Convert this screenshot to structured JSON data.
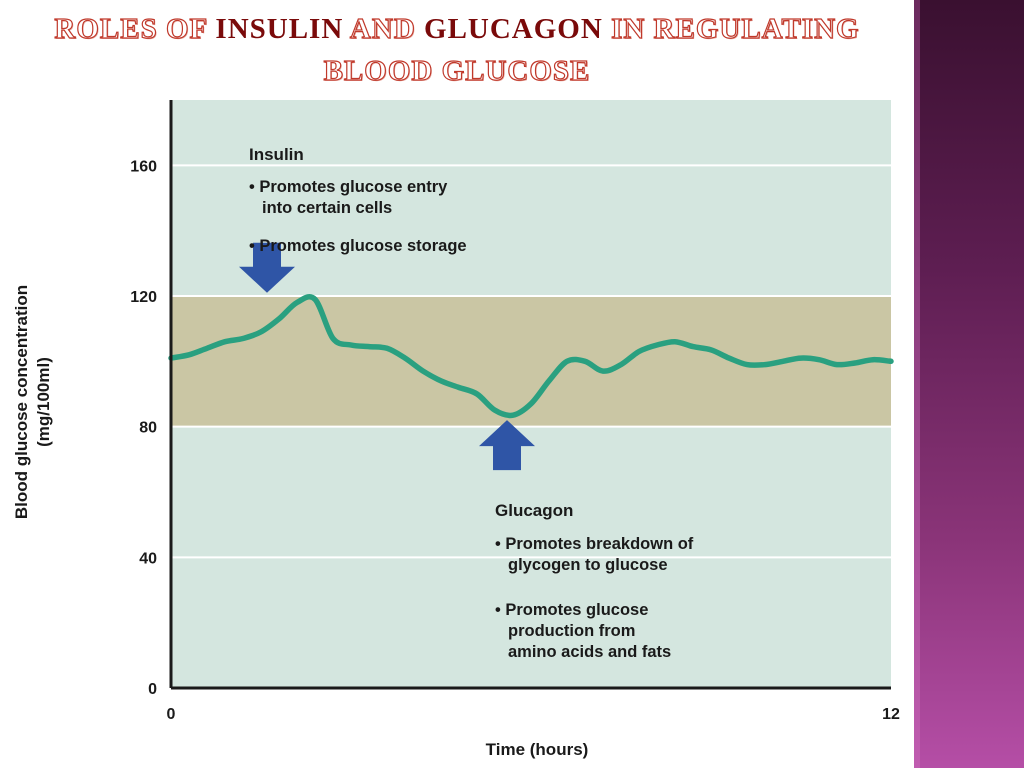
{
  "slide": {
    "title_parts": [
      "Roles of ",
      "Insulin",
      " and ",
      "Glucagon",
      " in regulating"
    ],
    "title_line2": "blood glucose"
  },
  "colors": {
    "plot_background": "#d4e6df",
    "normal_band": "#cac6a4",
    "curve": "#2aa080",
    "arrow": "#2f55a6",
    "gridline": "#ffffff",
    "title_outline": "#c0392b",
    "title_strong": "#7a0a0a"
  },
  "chart_data": {
    "type": "line",
    "title": "",
    "xlabel": "Time (hours)",
    "ylabel_lines": [
      "Blood glucose concentration",
      "(mg/100ml)"
    ],
    "xlim": [
      0,
      12
    ],
    "ylim": [
      0,
      180
    ],
    "x_ticks": [
      0,
      12
    ],
    "y_ticks": [
      0,
      40,
      80,
      120,
      160
    ],
    "grid": true,
    "normal_range": [
      80,
      120
    ],
    "series": [
      {
        "name": "",
        "x": [
          0,
          0.3,
          0.6,
          0.9,
          1.2,
          1.5,
          1.8,
          2.1,
          2.4,
          2.7,
          3.0,
          3.3,
          3.6,
          3.9,
          4.2,
          4.5,
          4.8,
          5.1,
          5.4,
          5.7,
          6.0,
          6.3,
          6.6,
          6.9,
          7.2,
          7.5,
          7.8,
          8.1,
          8.4,
          8.7,
          9.0,
          9.3,
          9.6,
          9.9,
          10.2,
          10.5,
          10.8,
          11.1,
          11.4,
          11.7,
          12.0
        ],
        "y": [
          101,
          102,
          104,
          106,
          107,
          109,
          113,
          118,
          119,
          107,
          105,
          104.5,
          104,
          101,
          97,
          94,
          92,
          90,
          85,
          83.5,
          87,
          94,
          100,
          100,
          97,
          99,
          103,
          105,
          106,
          104.5,
          103.5,
          101,
          99,
          99,
          100,
          101,
          100.5,
          99,
          99.5,
          100.5,
          100
        ]
      }
    ],
    "annotations": {
      "insulin": {
        "heading": "Insulin",
        "points": [
          "• Promotes glucose entry",
          "into certain cells",
          "• Promotes glucose storage"
        ],
        "arrow": {
          "direction": "down",
          "x": 1.6,
          "y": 121
        }
      },
      "glucagon": {
        "heading": "Glucagon",
        "points": [
          "• Promotes breakdown of",
          "glycogen to glucose",
          "• Promotes glucose",
          "production from",
          "amino acids and fats"
        ],
        "arrow": {
          "direction": "up",
          "x": 5.6,
          "y": 82
        }
      }
    }
  }
}
